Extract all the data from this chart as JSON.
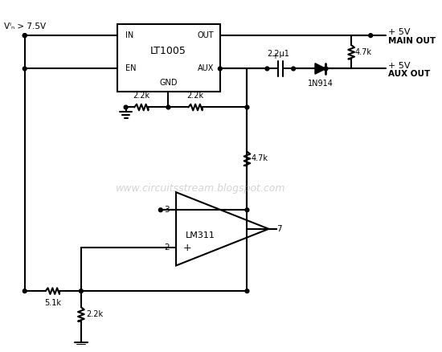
{
  "background": "white",
  "line_color": "black",
  "line_width": 1.5,
  "watermark": "www.circuitsstream.blogspot.com",
  "watermark_color": "#aaaaaa",
  "watermark_fontsize": 9,
  "labels": {
    "vin": "Vᴵₙ > 7.5V",
    "plus5v_main": "+ 5V",
    "main_out": "MAIN OUT",
    "plus5v_aux": "+ 5V",
    "aux_out": "AUX OUT",
    "lt1005_name": "LT1005",
    "lt1005_in": "IN",
    "lt1005_out": "OUT",
    "lt1005_en": "EN",
    "lt1005_gnd": "GND",
    "lt1005_aux": "AUX",
    "r1": "2.2k",
    "r2": "2.2k",
    "r3": "4.7k",
    "r4": "4.7k",
    "r5": "5.1k",
    "r6": "2.2k",
    "c1": "2.2μ1",
    "d1": "1N914",
    "lm311_name": "LM311",
    "lm311_minus": "−",
    "lm311_plus": "+",
    "lm311_out_pin": "7",
    "lm311_in_minus_pin": "3",
    "lm311_in_plus_pin": "2"
  }
}
